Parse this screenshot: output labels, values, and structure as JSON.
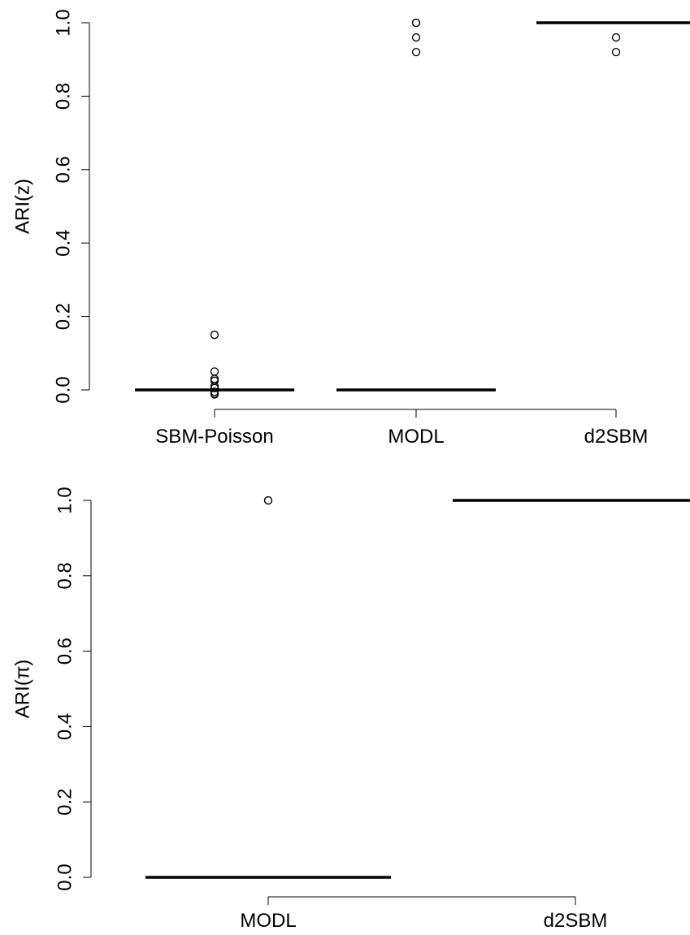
{
  "chart_data": [
    {
      "type": "boxplot",
      "title": "",
      "ylabel": "ARI(z)",
      "xlabel": "",
      "categories": [
        "SBM-Poisson",
        "MODL",
        "d2SBM"
      ],
      "ylim": [
        0,
        1
      ],
      "yticks": [
        "0.0",
        "0.2",
        "0.4",
        "0.6",
        "0.8",
        "1.0"
      ],
      "medians": [
        0,
        0,
        1
      ],
      "outliers": [
        [
          0.15,
          0.05,
          0.03,
          0.025,
          0.01,
          0.005,
          -0.005,
          -0.01,
          -0.012
        ],
        [
          1.0,
          1.0,
          0.96,
          0.92
        ],
        [
          0.96,
          0.92
        ]
      ]
    },
    {
      "type": "boxplot",
      "title": "",
      "ylabel": "ARI(π)",
      "xlabel": "",
      "categories": [
        "MODL",
        "d2SBM"
      ],
      "ylim": [
        0,
        1
      ],
      "yticks": [
        "0.0",
        "0.2",
        "0.4",
        "0.6",
        "0.8",
        "1.0"
      ],
      "medians": [
        0,
        1
      ],
      "outliers": [
        [
          1.0,
          1.0
        ],
        []
      ]
    }
  ]
}
